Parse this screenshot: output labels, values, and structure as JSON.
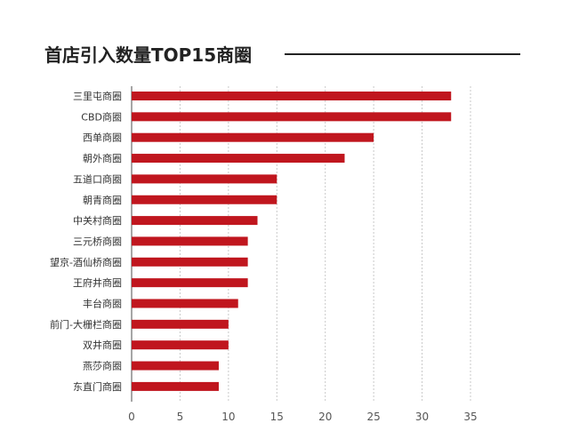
{
  "chart_data": {
    "type": "bar",
    "orientation": "horizontal",
    "title": "首店引入数量TOP15商圈",
    "xlabel": "",
    "ylabel": "",
    "xlim": [
      0,
      35
    ],
    "xticks": [
      0,
      5,
      10,
      15,
      20,
      25,
      30,
      35
    ],
    "grid": "vertical dashed",
    "bar_color": "#c0161e",
    "categories": [
      "三里屯商圈",
      "CBD商圈",
      "西单商圈",
      "朝外商圈",
      "五道口商圈",
      "朝青商圈",
      "中关村商圈",
      "三元桥商圈",
      "望京-酒仙桥商圈",
      "王府井商圈",
      "丰台商圈",
      "前门-大栅栏商圈",
      "双井商圈",
      "燕莎商圈",
      "东直门商圈"
    ],
    "values": [
      33,
      33,
      25,
      22,
      15,
      15,
      13,
      12,
      12,
      12,
      11,
      10,
      10,
      9,
      9
    ]
  }
}
